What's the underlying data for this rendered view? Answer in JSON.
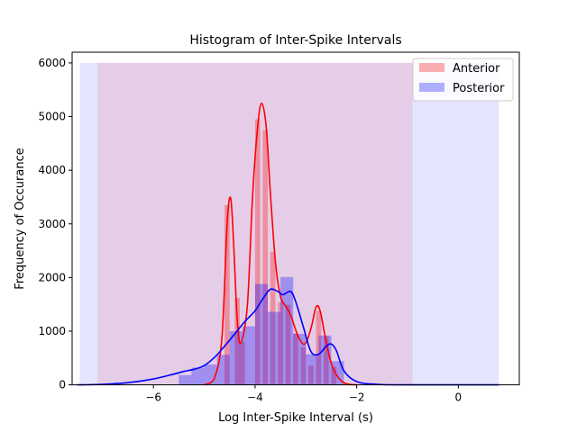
{
  "chart_data": {
    "type": "bar",
    "title": "Histogram of Inter-Spike Intervals",
    "xlabel": "Log Inter-Spike Interval (s)",
    "ylabel": "Frequency of Occurance",
    "xlim": [
      -7.6,
      1.2
    ],
    "ylim": [
      0,
      6200
    ],
    "x_ticks": [
      -6,
      -4,
      -2,
      0
    ],
    "x_tick_labels": [
      "−6",
      "−4",
      "−2",
      "0"
    ],
    "y_ticks": [
      0,
      1000,
      2000,
      3000,
      4000,
      5000,
      6000
    ],
    "y_tick_labels": [
      "0",
      "1000",
      "2000",
      "3000",
      "4000",
      "5000",
      "6000"
    ],
    "legend_position": "top-right",
    "series": [
      {
        "name": "Anterior",
        "color": "#ff0000",
        "range_span": [
          -7.1,
          -0.9
        ],
        "bin_width": 0.1,
        "bins": [
          {
            "x": -4.55,
            "y": 3350
          },
          {
            "x": -4.35,
            "y": 1620
          },
          {
            "x": -4.25,
            "y": 800
          },
          {
            "x": -3.95,
            "y": 4950
          },
          {
            "x": -3.8,
            "y": 4750
          },
          {
            "x": -3.65,
            "y": 2480
          },
          {
            "x": -3.5,
            "y": 1540
          },
          {
            "x": -3.35,
            "y": 1490
          },
          {
            "x": -3.2,
            "y": 960
          },
          {
            "x": -3.05,
            "y": 700
          },
          {
            "x": -2.9,
            "y": 360
          },
          {
            "x": -2.75,
            "y": 1380
          },
          {
            "x": -2.6,
            "y": 900
          },
          {
            "x": -2.45,
            "y": 330
          }
        ],
        "kde": [
          [
            -5.0,
            0
          ],
          [
            -4.8,
            120
          ],
          [
            -4.65,
            900
          ],
          [
            -4.55,
            3000
          ],
          [
            -4.48,
            3480
          ],
          [
            -4.42,
            2600
          ],
          [
            -4.35,
            1200
          ],
          [
            -4.28,
            780
          ],
          [
            -4.15,
            1500
          ],
          [
            -4.05,
            3500
          ],
          [
            -3.95,
            4800
          ],
          [
            -3.87,
            5250
          ],
          [
            -3.78,
            4800
          ],
          [
            -3.7,
            3600
          ],
          [
            -3.6,
            2300
          ],
          [
            -3.5,
            1650
          ],
          [
            -3.4,
            1470
          ],
          [
            -3.3,
            1300
          ],
          [
            -3.15,
            900
          ],
          [
            -3.02,
            760
          ],
          [
            -2.9,
            1050
          ],
          [
            -2.8,
            1450
          ],
          [
            -2.72,
            1380
          ],
          [
            -2.62,
            900
          ],
          [
            -2.5,
            400
          ],
          [
            -2.35,
            120
          ],
          [
            -2.2,
            20
          ],
          [
            -2.0,
            0
          ]
        ]
      },
      {
        "name": "Posterior",
        "color": "#0000ff",
        "range_span": [
          -7.45,
          0.8
        ],
        "bin_width": 0.25,
        "bins": [
          {
            "x": -5.375,
            "y": 180
          },
          {
            "x": -5.125,
            "y": 320
          },
          {
            "x": -4.875,
            "y": 380
          },
          {
            "x": -4.625,
            "y": 560
          },
          {
            "x": -4.375,
            "y": 1000
          },
          {
            "x": -4.125,
            "y": 1090
          },
          {
            "x": -3.875,
            "y": 1880
          },
          {
            "x": -3.625,
            "y": 1360
          },
          {
            "x": -3.375,
            "y": 2010
          },
          {
            "x": -3.125,
            "y": 950
          },
          {
            "x": -2.875,
            "y": 570
          },
          {
            "x": -2.625,
            "y": 920
          },
          {
            "x": -2.375,
            "y": 440
          }
        ],
        "kde": [
          [
            -7.5,
            0
          ],
          [
            -7.0,
            10
          ],
          [
            -6.5,
            40
          ],
          [
            -6.0,
            110
          ],
          [
            -5.6,
            200
          ],
          [
            -5.4,
            250
          ],
          [
            -5.2,
            290
          ],
          [
            -5.0,
            360
          ],
          [
            -4.8,
            510
          ],
          [
            -4.6,
            720
          ],
          [
            -4.4,
            950
          ],
          [
            -4.2,
            1180
          ],
          [
            -4.0,
            1380
          ],
          [
            -3.85,
            1600
          ],
          [
            -3.7,
            1780
          ],
          [
            -3.55,
            1740
          ],
          [
            -3.45,
            1680
          ],
          [
            -3.3,
            1740
          ],
          [
            -3.2,
            1550
          ],
          [
            -3.05,
            1080
          ],
          [
            -2.9,
            620
          ],
          [
            -2.75,
            570
          ],
          [
            -2.6,
            720
          ],
          [
            -2.5,
            760
          ],
          [
            -2.4,
            640
          ],
          [
            -2.25,
            260
          ],
          [
            -2.0,
            60
          ],
          [
            -1.6,
            10
          ],
          [
            -1.0,
            0
          ],
          [
            0.8,
            0
          ]
        ]
      }
    ]
  }
}
